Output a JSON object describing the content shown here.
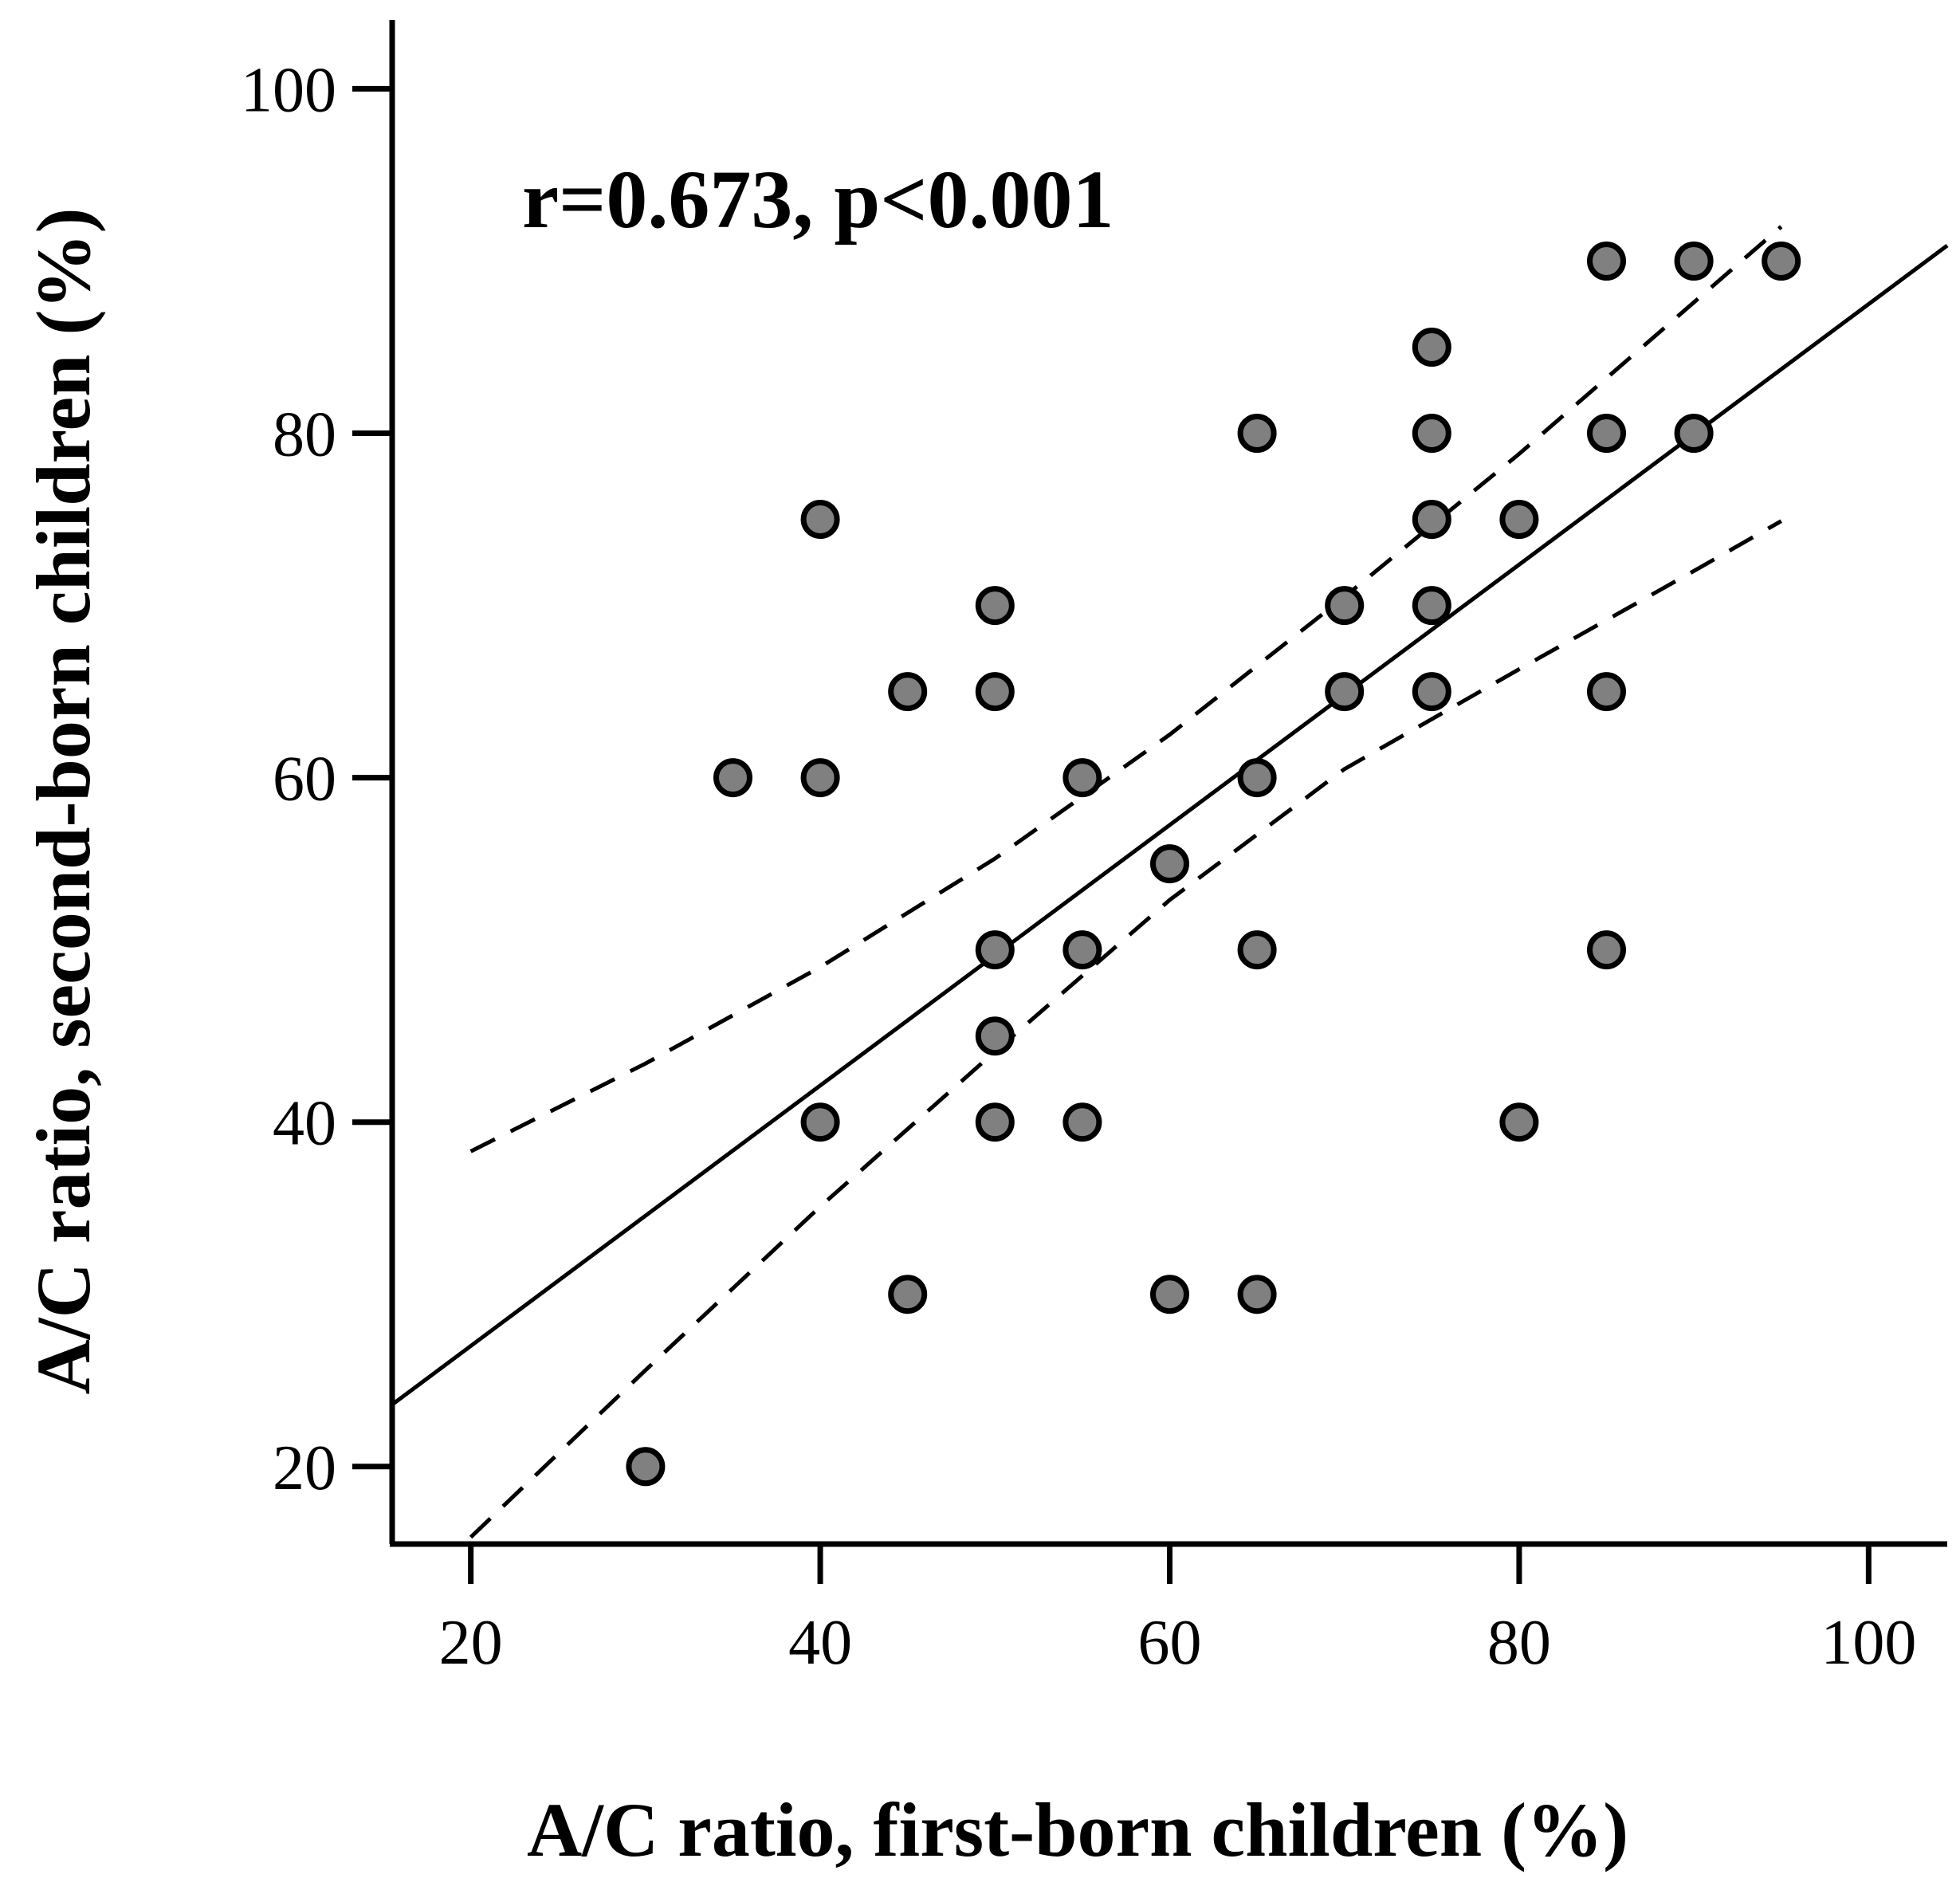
{
  "chart_data": {
    "type": "scatter",
    "title": "",
    "xlabel": "A/C ratio, first-born children (%)",
    "ylabel": "A/C ratio, second-born children (%)",
    "annotation": "r=0.673, p<0.001",
    "xlim": [
      15.5,
      104.5
    ],
    "ylim": [
      15.5,
      104
    ],
    "xticks": [
      20,
      40,
      60,
      80,
      100
    ],
    "yticks": [
      20,
      40,
      60,
      80,
      100
    ],
    "xtick_labels": [
      "20",
      "40",
      "60",
      "80",
      "100"
    ],
    "ytick_labels": [
      "20",
      "40",
      "60",
      "80",
      "100"
    ],
    "grid": false,
    "points": [
      {
        "x": 30,
        "y": 20
      },
      {
        "x": 35,
        "y": 60
      },
      {
        "x": 40,
        "y": 75
      },
      {
        "x": 40,
        "y": 60
      },
      {
        "x": 40,
        "y": 40
      },
      {
        "x": 45,
        "y": 65
      },
      {
        "x": 45,
        "y": 30
      },
      {
        "x": 50,
        "y": 70
      },
      {
        "x": 50,
        "y": 65
      },
      {
        "x": 50,
        "y": 50
      },
      {
        "x": 50,
        "y": 45
      },
      {
        "x": 50,
        "y": 40
      },
      {
        "x": 55,
        "y": 60
      },
      {
        "x": 55,
        "y": 50
      },
      {
        "x": 55,
        "y": 40
      },
      {
        "x": 60,
        "y": 55
      },
      {
        "x": 60,
        "y": 30
      },
      {
        "x": 65,
        "y": 80
      },
      {
        "x": 65,
        "y": 60
      },
      {
        "x": 65,
        "y": 50
      },
      {
        "x": 65,
        "y": 30
      },
      {
        "x": 70,
        "y": 70
      },
      {
        "x": 70,
        "y": 65
      },
      {
        "x": 75,
        "y": 85
      },
      {
        "x": 75,
        "y": 80
      },
      {
        "x": 75,
        "y": 75
      },
      {
        "x": 75,
        "y": 70
      },
      {
        "x": 75,
        "y": 65
      },
      {
        "x": 80,
        "y": 75
      },
      {
        "x": 80,
        "y": 40
      },
      {
        "x": 85,
        "y": 90
      },
      {
        "x": 85,
        "y": 80
      },
      {
        "x": 85,
        "y": 65
      },
      {
        "x": 85,
        "y": 50
      },
      {
        "x": 90,
        "y": 90
      },
      {
        "x": 90,
        "y": 80
      },
      {
        "x": 95,
        "y": 90
      }
    ],
    "regression_line": {
      "style": "solid",
      "x": [
        15.5,
        104.5
      ],
      "y": [
        23.6,
        90.9
      ]
    },
    "confidence_upper": {
      "style": "dashed",
      "x": [
        20,
        30,
        40,
        50,
        60,
        70,
        80,
        90,
        95
      ],
      "y": [
        38.3,
        43.4,
        49.0,
        55.3,
        62.5,
        70.5,
        78.8,
        87.6,
        92.0
      ]
    },
    "confidence_lower": {
      "style": "dashed",
      "x": [
        20,
        30,
        40,
        50,
        60,
        70,
        80,
        90,
        95
      ],
      "y": [
        15.9,
        25.6,
        35.1,
        44.1,
        52.9,
        60.5,
        66.3,
        72.0,
        74.9
      ]
    },
    "colors": {
      "marker_fill": "#808080",
      "marker_stroke": "#000000",
      "line": "#000000",
      "axis": "#000000"
    }
  }
}
